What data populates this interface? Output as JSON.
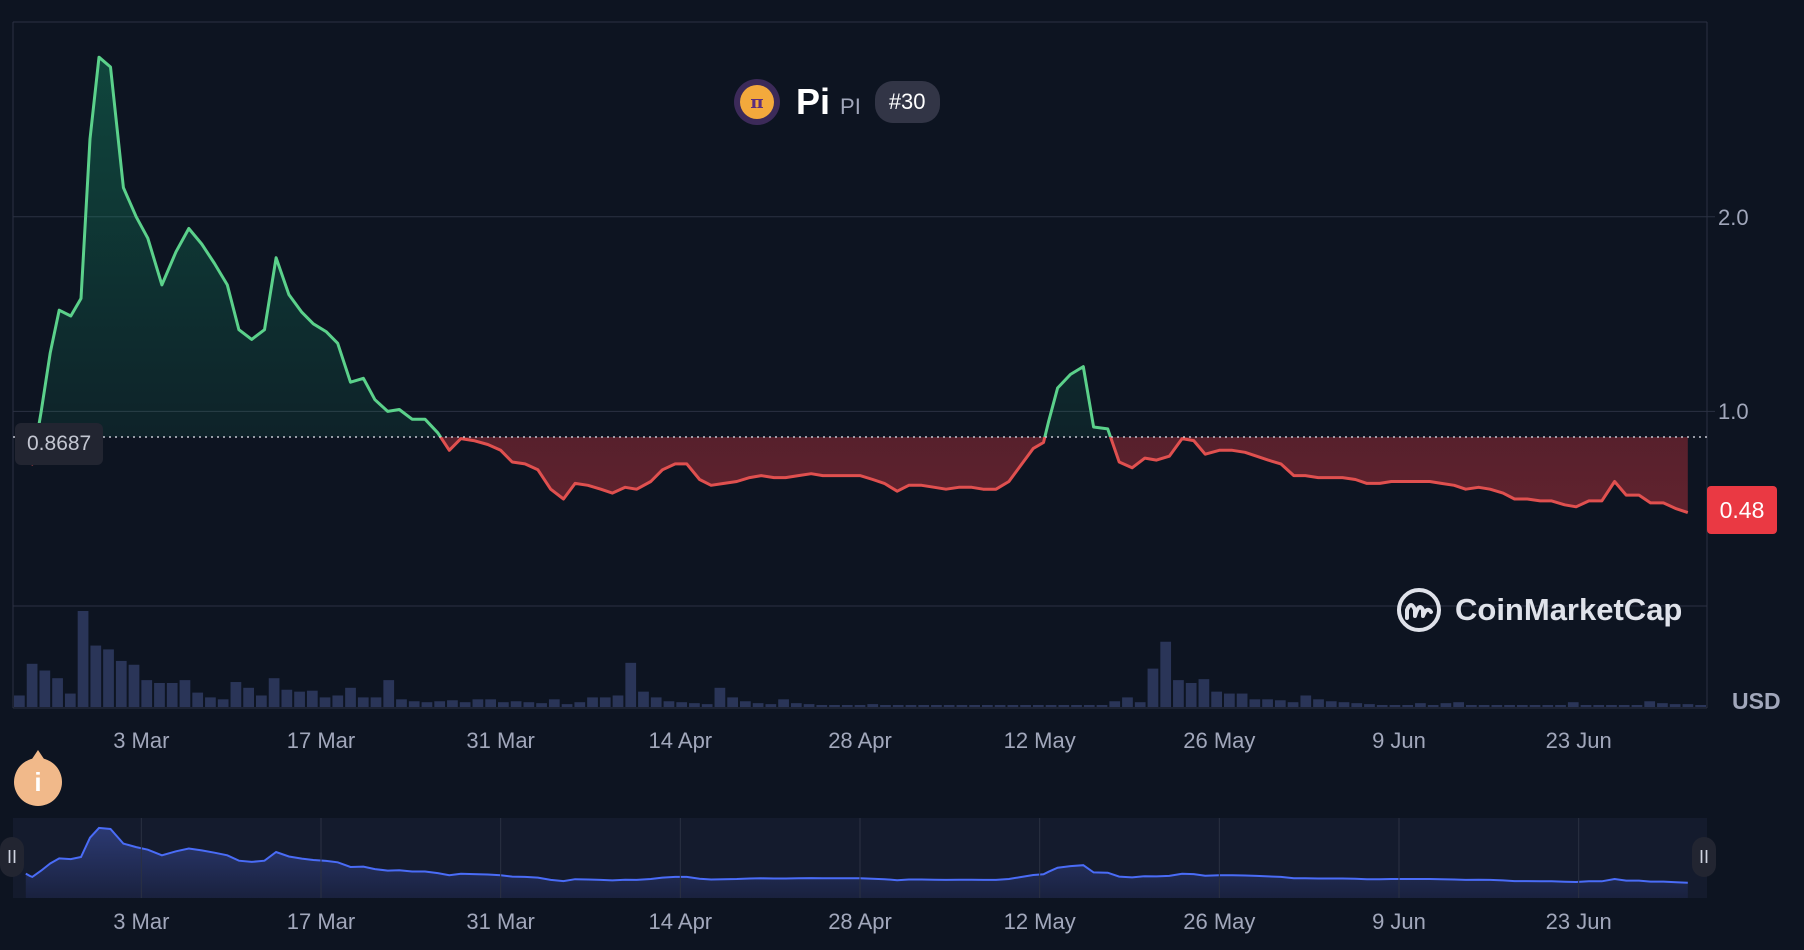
{
  "coin": {
    "name": "Pi",
    "symbol": "PI",
    "rank": "#30",
    "logo_glyph": "π"
  },
  "reference_label": "0.8687",
  "current_price_label": "0.48",
  "currency": "USD",
  "watermark": "CoinMarketCap",
  "colors": {
    "background": "#0d1421",
    "up": "#16c784",
    "up_line": "#5bd18b",
    "down": "#ea3943",
    "down_line": "#e0504f",
    "volume": "#2a3558",
    "navigator_line": "#4a6cf7",
    "grid": "#2b3142"
  },
  "chart_data": {
    "type": "area",
    "title": "Pi PI #30",
    "xlabel": "",
    "ylabel": "USD",
    "x_ticks": [
      "3 Mar",
      "17 Mar",
      "31 Mar",
      "14 Apr",
      "28 Apr",
      "12 May",
      "26 May",
      "9 Jun",
      "23 Jun"
    ],
    "x_tick_days": [
      10,
      24,
      38,
      52,
      66,
      80,
      94,
      108,
      122
    ],
    "y_ticks": [
      "1.0",
      "2.0"
    ],
    "y_tick_values": [
      1.0,
      2.0
    ],
    "ylim": [
      0,
      3.0
    ],
    "x_domain_days": [
      0,
      132
    ],
    "reference_value": 0.8687,
    "last_price": 0.48,
    "series": [
      {
        "name": "Price (USD)",
        "points": [
          [
            1.0,
            0.8687
          ],
          [
            1.3,
            0.77
          ],
          [
            1.5,
            0.73
          ],
          [
            2.2,
            1.0
          ],
          [
            2.9,
            1.3
          ],
          [
            3.6,
            1.52
          ],
          [
            4.5,
            1.49
          ],
          [
            5.3,
            1.58
          ],
          [
            6.0,
            2.4
          ],
          [
            6.7,
            2.82
          ],
          [
            7.6,
            2.77
          ],
          [
            8.6,
            2.15
          ],
          [
            9.6,
            2.0
          ],
          [
            10.5,
            1.89
          ],
          [
            11.6,
            1.65
          ],
          [
            12.7,
            1.82
          ],
          [
            13.7,
            1.94
          ],
          [
            14.7,
            1.86
          ],
          [
            15.7,
            1.76
          ],
          [
            16.7,
            1.65
          ],
          [
            17.6,
            1.42
          ],
          [
            18.6,
            1.37
          ],
          [
            19.6,
            1.42
          ],
          [
            20.5,
            1.79
          ],
          [
            21.5,
            1.6
          ],
          [
            22.5,
            1.51
          ],
          [
            23.4,
            1.45
          ],
          [
            24.4,
            1.41
          ],
          [
            25.3,
            1.35
          ],
          [
            26.3,
            1.15
          ],
          [
            27.3,
            1.17
          ],
          [
            28.2,
            1.06
          ],
          [
            29.2,
            1.0
          ],
          [
            30.1,
            1.01
          ],
          [
            31.1,
            0.96
          ],
          [
            32.1,
            0.96
          ],
          [
            33.1,
            0.89
          ],
          [
            34.0,
            0.8
          ],
          [
            34.9,
            0.86
          ],
          [
            35.9,
            0.85
          ],
          [
            37.0,
            0.83
          ],
          [
            38.0,
            0.8
          ],
          [
            38.9,
            0.74
          ],
          [
            39.9,
            0.73
          ],
          [
            40.9,
            0.7
          ],
          [
            41.9,
            0.6
          ],
          [
            42.9,
            0.55
          ],
          [
            43.8,
            0.63
          ],
          [
            44.8,
            0.62
          ],
          [
            45.8,
            0.6
          ],
          [
            46.7,
            0.58
          ],
          [
            47.7,
            0.61
          ],
          [
            48.6,
            0.6
          ],
          [
            49.7,
            0.64
          ],
          [
            50.6,
            0.7
          ],
          [
            51.6,
            0.73
          ],
          [
            52.5,
            0.73
          ],
          [
            53.5,
            0.65
          ],
          [
            54.4,
            0.62
          ],
          [
            55.4,
            0.63
          ],
          [
            56.4,
            0.64
          ],
          [
            57.4,
            0.66
          ],
          [
            58.3,
            0.67
          ],
          [
            59.3,
            0.66
          ],
          [
            60.2,
            0.66
          ],
          [
            61.2,
            0.67
          ],
          [
            62.2,
            0.68
          ],
          [
            63.1,
            0.67
          ],
          [
            64.1,
            0.67
          ],
          [
            65.0,
            0.67
          ],
          [
            66.0,
            0.67
          ],
          [
            67.0,
            0.65
          ],
          [
            67.9,
            0.63
          ],
          [
            68.9,
            0.59
          ],
          [
            69.8,
            0.62
          ],
          [
            70.8,
            0.62
          ],
          [
            71.8,
            0.61
          ],
          [
            72.7,
            0.6
          ],
          [
            73.7,
            0.61
          ],
          [
            74.7,
            0.61
          ],
          [
            75.6,
            0.6
          ],
          [
            76.6,
            0.6
          ],
          [
            77.6,
            0.64
          ],
          [
            78.5,
            0.72
          ],
          [
            79.5,
            0.81
          ],
          [
            80.3,
            0.84
          ],
          [
            80.7,
            0.95
          ],
          [
            81.4,
            1.12
          ],
          [
            82.4,
            1.19
          ],
          [
            83.4,
            1.23
          ],
          [
            84.2,
            0.92
          ],
          [
            85.3,
            0.91
          ],
          [
            86.2,
            0.74
          ],
          [
            87.2,
            0.71
          ],
          [
            88.2,
            0.76
          ],
          [
            89.1,
            0.75
          ],
          [
            90.1,
            0.77
          ],
          [
            91.1,
            0.86
          ],
          [
            92.0,
            0.85
          ],
          [
            92.9,
            0.78
          ],
          [
            94.0,
            0.8
          ],
          [
            95.0,
            0.8
          ],
          [
            96.0,
            0.79
          ],
          [
            96.9,
            0.77
          ],
          [
            97.8,
            0.75
          ],
          [
            98.8,
            0.73
          ],
          [
            99.8,
            0.67
          ],
          [
            100.7,
            0.67
          ],
          [
            101.7,
            0.66
          ],
          [
            102.6,
            0.66
          ],
          [
            103.6,
            0.66
          ],
          [
            104.6,
            0.65
          ],
          [
            105.5,
            0.63
          ],
          [
            106.5,
            0.63
          ],
          [
            107.4,
            0.64
          ],
          [
            108.4,
            0.64
          ],
          [
            109.4,
            0.64
          ],
          [
            110.4,
            0.64
          ],
          [
            111.3,
            0.63
          ],
          [
            112.3,
            0.62
          ],
          [
            113.2,
            0.6
          ],
          [
            114.2,
            0.61
          ],
          [
            115.1,
            0.6
          ],
          [
            116.1,
            0.58
          ],
          [
            117.0,
            0.55
          ],
          [
            118.0,
            0.55
          ],
          [
            119.0,
            0.54
          ],
          [
            119.9,
            0.54
          ],
          [
            120.9,
            0.52
          ],
          [
            121.8,
            0.51
          ],
          [
            122.8,
            0.54
          ],
          [
            123.8,
            0.54
          ],
          [
            124.8,
            0.64
          ],
          [
            125.7,
            0.57
          ],
          [
            126.7,
            0.57
          ],
          [
            127.6,
            0.53
          ],
          [
            128.6,
            0.53
          ],
          [
            129.6,
            0.5
          ],
          [
            130.5,
            0.48
          ]
        ]
      },
      {
        "name": "Volume (relative)",
        "values": [
          0.12,
          0.45,
          0.38,
          0.3,
          0.14,
          1.0,
          0.64,
          0.6,
          0.48,
          0.44,
          0.28,
          0.25,
          0.25,
          0.28,
          0.15,
          0.1,
          0.08,
          0.26,
          0.2,
          0.12,
          0.3,
          0.18,
          0.16,
          0.17,
          0.1,
          0.12,
          0.2,
          0.1,
          0.1,
          0.28,
          0.08,
          0.06,
          0.05,
          0.06,
          0.07,
          0.05,
          0.08,
          0.08,
          0.05,
          0.06,
          0.05,
          0.04,
          0.08,
          0.03,
          0.05,
          0.1,
          0.1,
          0.12,
          0.46,
          0.16,
          0.1,
          0.06,
          0.05,
          0.04,
          0.03,
          0.2,
          0.1,
          0.06,
          0.04,
          0.03,
          0.08,
          0.04,
          0.03,
          0.02,
          0.02,
          0.02,
          0.02,
          0.03,
          0.02,
          0.01,
          0.01,
          0.01,
          0.01,
          0.01,
          0.01,
          0.02,
          0.01,
          0.02,
          0.02,
          0.02,
          0.01,
          0.01,
          0.01,
          0.01,
          0.01,
          0.01,
          0.06,
          0.1,
          0.05,
          0.4,
          0.68,
          0.28,
          0.25,
          0.29,
          0.16,
          0.14,
          0.14,
          0.08,
          0.08,
          0.07,
          0.05,
          0.12,
          0.08,
          0.06,
          0.05,
          0.04,
          0.03,
          0.02,
          0.02,
          0.02,
          0.04,
          0.02,
          0.04,
          0.05,
          0.02,
          0.01,
          0.01,
          0.01,
          0.01,
          0.01,
          0.01,
          0.01,
          0.05,
          0.02,
          0.01,
          0.02,
          0.01,
          0.02,
          0.06,
          0.04,
          0.03,
          0.03,
          0.01
        ]
      }
    ]
  }
}
